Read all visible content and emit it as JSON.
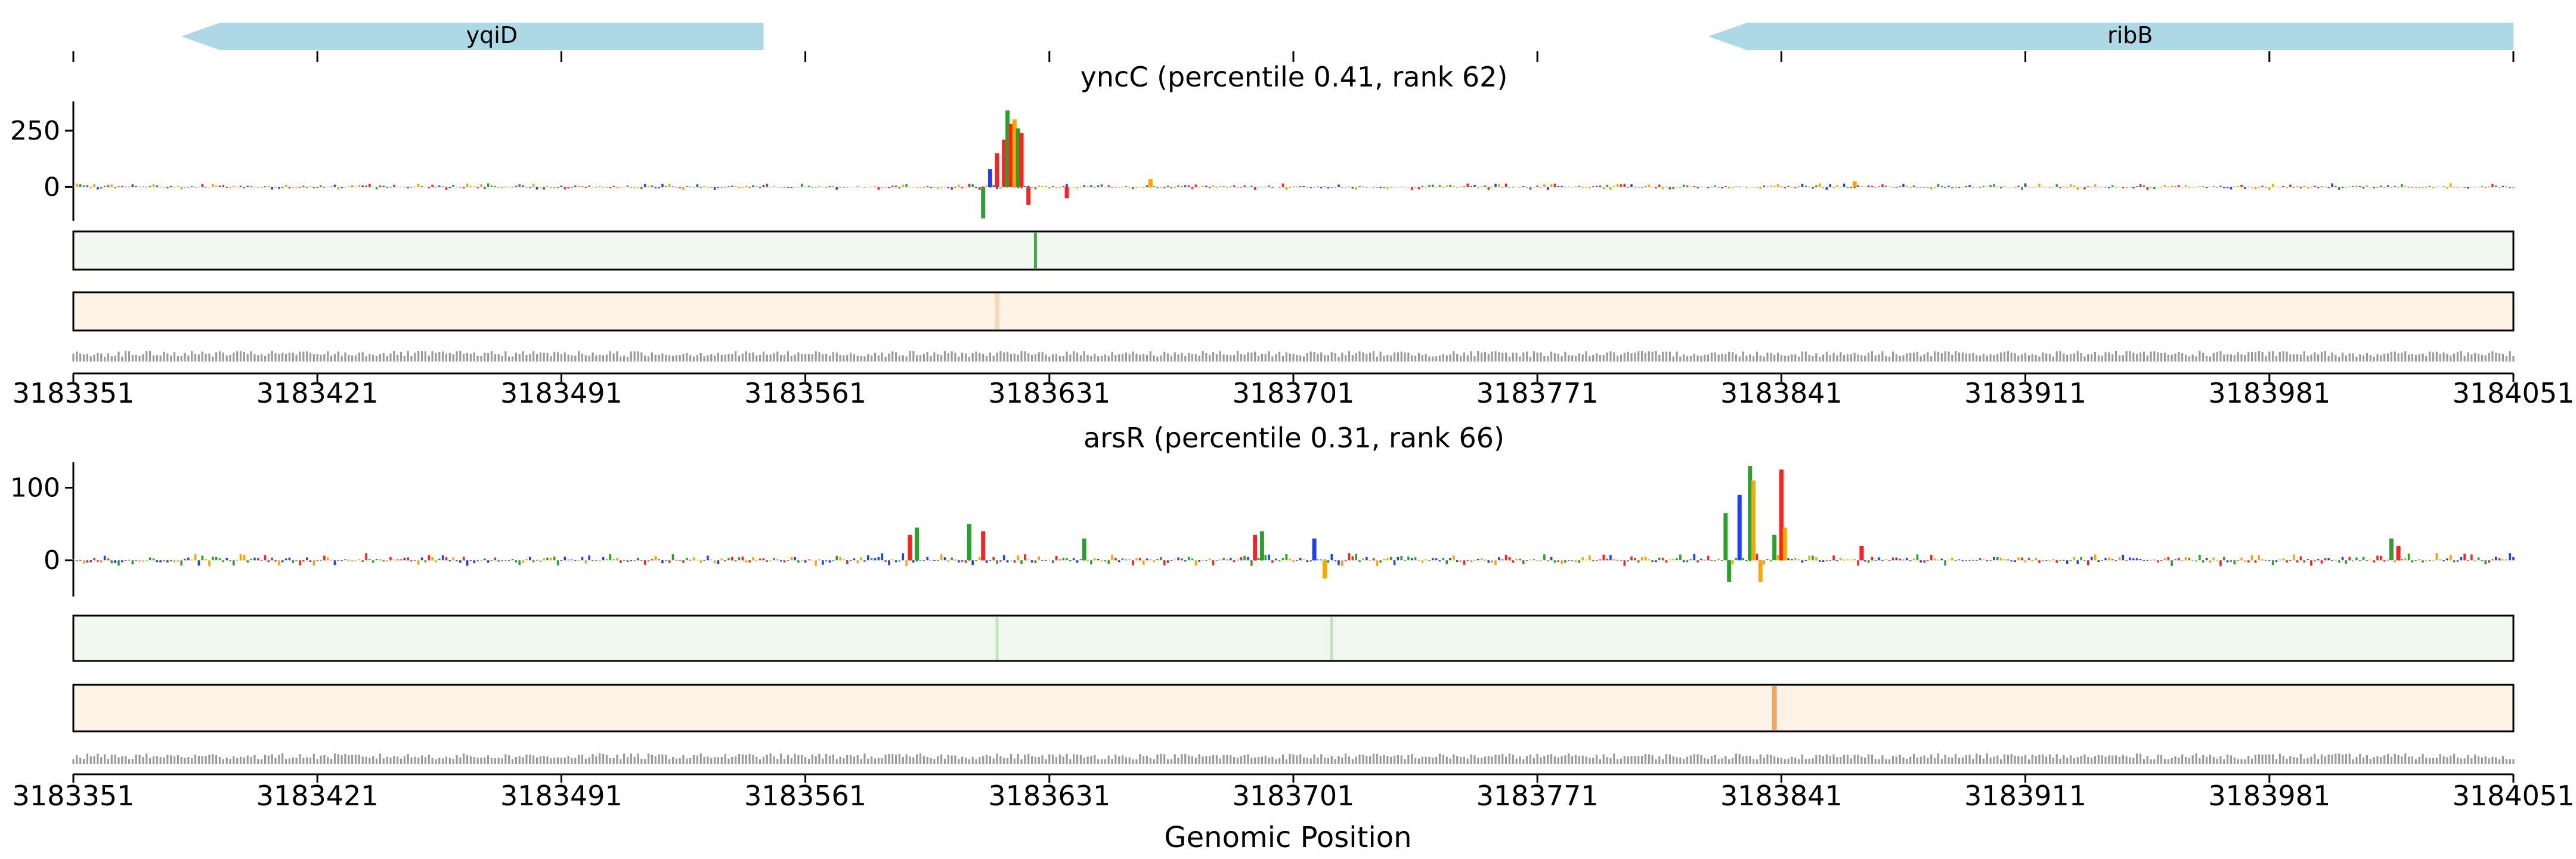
{
  "figure": {
    "xlabel": "Genomic Position",
    "x_tick_labels": [
      "3183351",
      "3183421",
      "3183491",
      "3183561",
      "3183631",
      "3183701",
      "3183771",
      "3183841",
      "3183911",
      "3183981",
      "3184051"
    ]
  },
  "genes": [
    {
      "name": "yqiD",
      "start": 3183382,
      "end": 3183549,
      "strand": "-"
    },
    {
      "name": "ribB",
      "start": 3183820,
      "end": 3184051,
      "strand": "-"
    }
  ],
  "colors": {
    "A": "#2ca02c",
    "C": "#1f3fff",
    "G": "#ffa500",
    "T": "#ff2020",
    "gene": "#add8e6",
    "green_track": "#f1f8ef",
    "green_mark": "#3d9a3d",
    "orange_track": "#fff3e8",
    "orange_mark": "#f0a060"
  },
  "chart_data": [
    {
      "type": "bar",
      "title": "yncC (percentile 0.41, rank 62)",
      "xlabel": "",
      "ylabel": "",
      "xlim": [
        3183351,
        3184051
      ],
      "ylim": [
        -150,
        380
      ],
      "yticks": [
        0,
        250
      ],
      "grid": false,
      "peaks": [
        {
          "x": 3183614,
          "value": 80,
          "base": "C"
        },
        {
          "x": 3183616,
          "value": 150,
          "base": "T"
        },
        {
          "x": 3183618,
          "value": 210,
          "base": "T"
        },
        {
          "x": 3183619,
          "value": 340,
          "base": "A"
        },
        {
          "x": 3183620,
          "value": 280,
          "base": "T"
        },
        {
          "x": 3183621,
          "value": 300,
          "base": "G"
        },
        {
          "x": 3183622,
          "value": 260,
          "base": "A"
        },
        {
          "x": 3183623,
          "value": 240,
          "base": "T"
        },
        {
          "x": 3183612,
          "value": -140,
          "base": "A"
        },
        {
          "x": 3183625,
          "value": -80,
          "base": "T"
        },
        {
          "x": 3183636,
          "value": -50,
          "base": "T"
        },
        {
          "x": 3183660,
          "value": 35,
          "base": "G"
        },
        {
          "x": 3183862,
          "value": 25,
          "base": "G"
        }
      ],
      "green_track_marks": [
        3183627
      ],
      "orange_track_marks": [
        3183616
      ]
    },
    {
      "type": "bar",
      "title": "arsR (percentile 0.31, rank 66)",
      "xlabel": "",
      "ylabel": "",
      "xlim": [
        3183351,
        3184051
      ],
      "ylim": [
        -50,
        135
      ],
      "yticks": [
        0,
        100
      ],
      "grid": false,
      "peaks": [
        {
          "x": 3183591,
          "value": 35,
          "base": "T"
        },
        {
          "x": 3183593,
          "value": 45,
          "base": "A"
        },
        {
          "x": 3183608,
          "value": 50,
          "base": "A"
        },
        {
          "x": 3183612,
          "value": 40,
          "base": "T"
        },
        {
          "x": 3183641,
          "value": 30,
          "base": "A"
        },
        {
          "x": 3183690,
          "value": 35,
          "base": "T"
        },
        {
          "x": 3183692,
          "value": 40,
          "base": "A"
        },
        {
          "x": 3183707,
          "value": 30,
          "base": "C"
        },
        {
          "x": 3183710,
          "value": -25,
          "base": "G"
        },
        {
          "x": 3183825,
          "value": 65,
          "base": "A"
        },
        {
          "x": 3183826,
          "value": -30,
          "base": "A"
        },
        {
          "x": 3183829,
          "value": 90,
          "base": "C"
        },
        {
          "x": 3183832,
          "value": 130,
          "base": "A"
        },
        {
          "x": 3183833,
          "value": 110,
          "base": "G"
        },
        {
          "x": 3183835,
          "value": -30,
          "base": "G"
        },
        {
          "x": 3183839,
          "value": 35,
          "base": "A"
        },
        {
          "x": 3183841,
          "value": 125,
          "base": "T"
        },
        {
          "x": 3183842,
          "value": 45,
          "base": "G"
        },
        {
          "x": 3183864,
          "value": 20,
          "base": "T"
        },
        {
          "x": 3184016,
          "value": 30,
          "base": "A"
        },
        {
          "x": 3184018,
          "value": 20,
          "base": "T"
        }
      ],
      "green_track_marks": [
        3183616,
        3183712
      ],
      "orange_track_marks": [
        3183839
      ]
    }
  ]
}
